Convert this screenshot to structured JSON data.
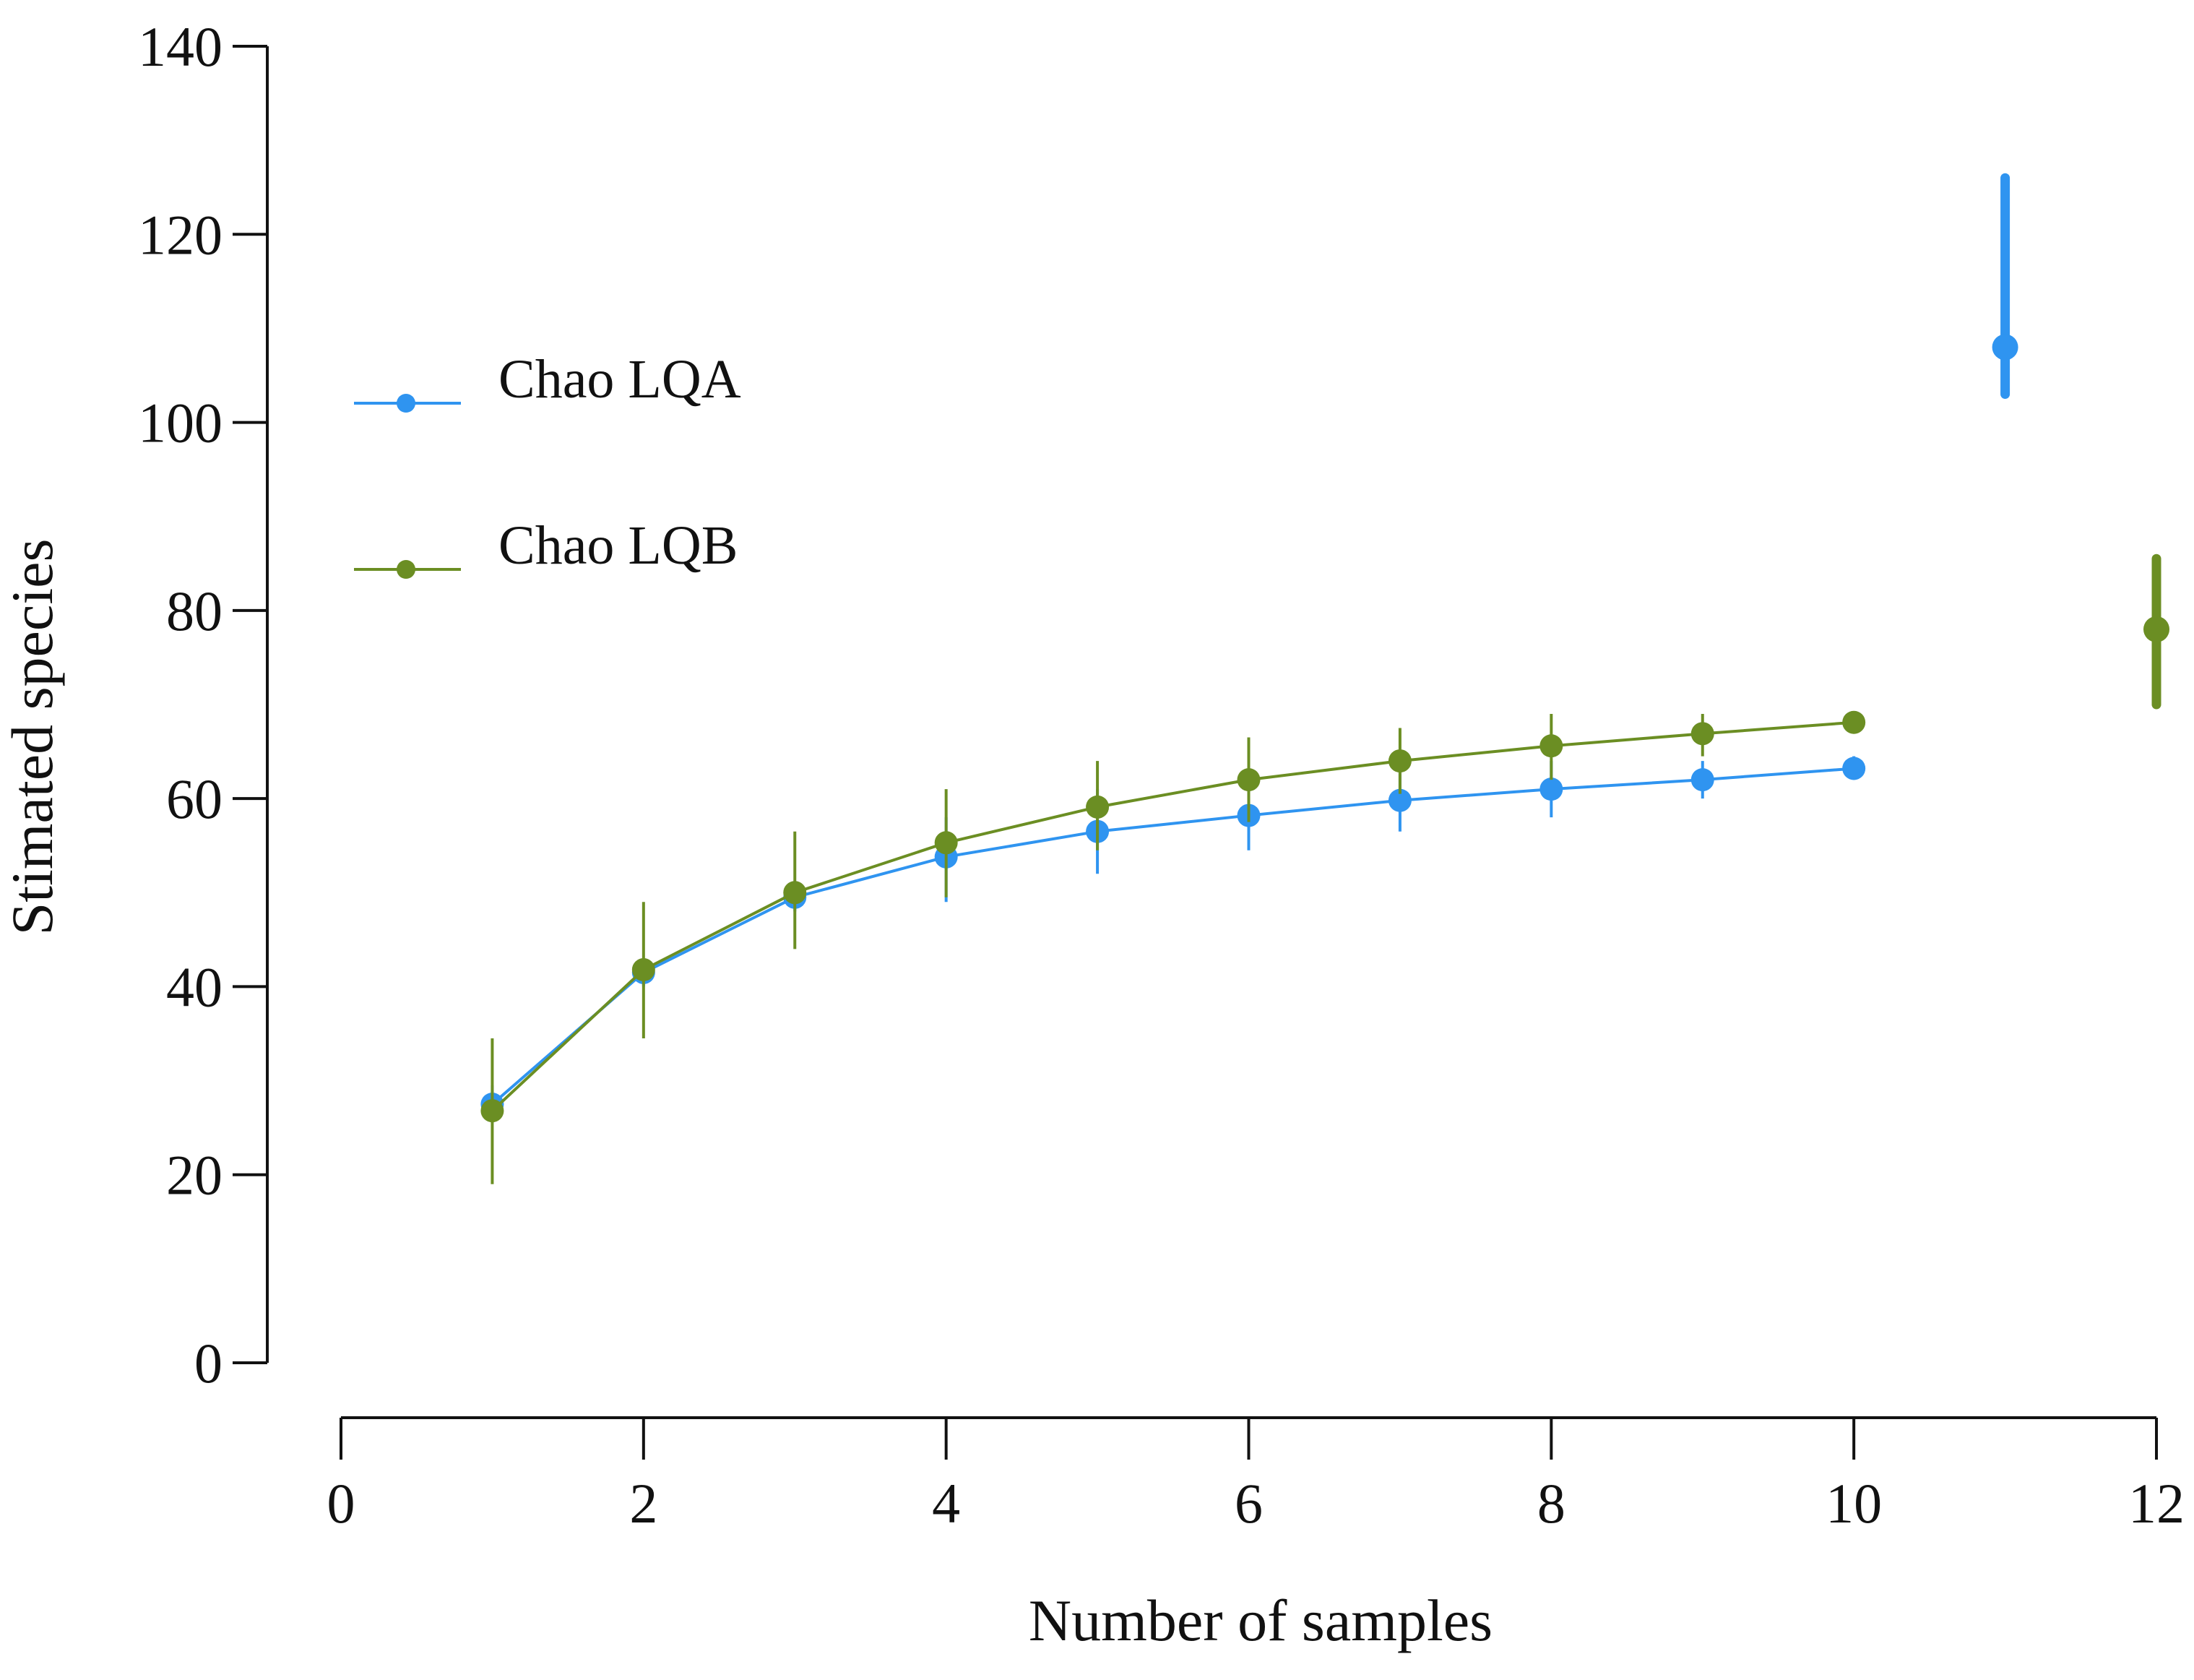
{
  "chart_data": {
    "type": "line",
    "title": "",
    "xlabel": "Number of samples",
    "ylabel": "Stimated species",
    "xlim": [
      0,
      12
    ],
    "ylim": [
      0,
      140
    ],
    "xticks": [
      0,
      2,
      4,
      6,
      8,
      10,
      12
    ],
    "yticks": [
      0,
      20,
      40,
      60,
      80,
      100,
      120,
      140
    ],
    "grid": false,
    "legend_position": "center-left",
    "series": [
      {
        "name": "Chao LQA",
        "color": "#2f94f0",
        "x": [
          1,
          2,
          3,
          4,
          5,
          6,
          7,
          8,
          9,
          10
        ],
        "values": [
          27.5,
          41.5,
          49.5,
          53.8,
          56.5,
          58.2,
          59.8,
          61.0,
          62.0,
          63.2
        ],
        "error_low": [
          25.5,
          40.0,
          48.0,
          49.0,
          52.0,
          54.5,
          56.5,
          58.0,
          60.0,
          62.0
        ],
        "error_high": [
          29.5,
          43.0,
          51.0,
          58.0,
          61.0,
          62.0,
          63.0,
          64.0,
          64.0,
          64.5
        ],
        "outlier": {
          "x": 11,
          "value": 108.0,
          "error_low": 103.0,
          "error_high": 126.0
        }
      },
      {
        "name": "Chao LQB",
        "color": "#6b8e23",
        "x": [
          1,
          2,
          3,
          4,
          5,
          6,
          7,
          8,
          9,
          10
        ],
        "values": [
          26.8,
          41.8,
          50.0,
          55.3,
          59.1,
          62.0,
          64.0,
          65.6,
          66.9,
          68.1
        ],
        "error_low": [
          19.0,
          34.5,
          44.0,
          49.5,
          54.5,
          57.5,
          60.5,
          62.0,
          64.5,
          67.0
        ],
        "error_high": [
          34.5,
          49.0,
          56.5,
          61.0,
          64.0,
          66.5,
          67.5,
          69.0,
          69.0,
          69.2
        ],
        "outlier": {
          "x": 12,
          "value": 78.0,
          "error_low": 70.0,
          "error_high": 85.5
        }
      }
    ]
  }
}
